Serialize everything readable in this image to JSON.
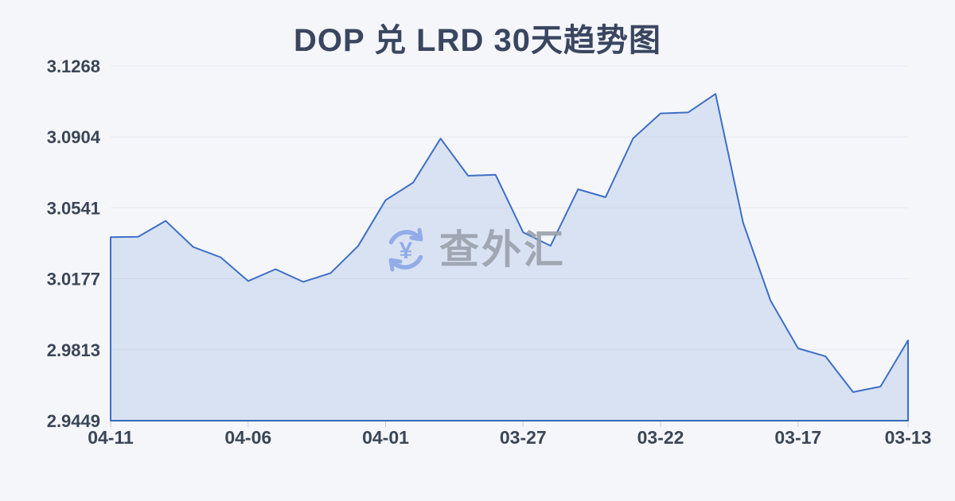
{
  "page": {
    "background": "#f5f6fa"
  },
  "chart_data": {
    "type": "area",
    "title": "DOP 兑 LRD 30天趋势图",
    "x": [
      "04-11",
      "04-10",
      "04-09",
      "04-08",
      "04-07",
      "04-06",
      "04-05",
      "04-04",
      "04-03",
      "04-02",
      "04-01",
      "03-31",
      "03-30",
      "03-29",
      "03-28",
      "03-27",
      "03-26",
      "03-25",
      "03-24",
      "03-23",
      "03-22",
      "03-21",
      "03-20",
      "03-19",
      "03-18",
      "03-17",
      "03-16",
      "03-15",
      "03-14",
      "03-13"
    ],
    "values": [
      3.039,
      3.0392,
      3.0474,
      3.034,
      3.0287,
      3.0165,
      3.0226,
      3.0161,
      3.0206,
      3.0345,
      3.058,
      3.067,
      3.0896,
      3.0705,
      3.071,
      3.0415,
      3.0346,
      3.0636,
      3.0595,
      3.0897,
      3.1025,
      3.103,
      3.1125,
      3.0465,
      3.0065,
      2.982,
      2.9779,
      2.9596,
      2.9624,
      2.9861
    ],
    "x_tick_labels": [
      "04-11",
      "04-06",
      "04-01",
      "03-27",
      "03-22",
      "03-17",
      "03-13"
    ],
    "y_tick_labels": [
      "3.1268",
      "3.0904",
      "3.0541",
      "3.0177",
      "2.9813",
      "2.9449"
    ],
    "ylim": [
      2.9449,
      3.1268
    ],
    "xlabel": "",
    "ylabel": "",
    "grid": true,
    "legend_position": "none",
    "colors": {
      "line": "#3d6fc6",
      "area_fill": "rgba(62,114,200,0.15)",
      "axis_line": "#3766b5",
      "grid_line": "#e6e9f0",
      "tick_mark": "#c9ccd3",
      "label_text": "#3a4656",
      "title_text": "#3a4660",
      "watermark_text": "#9aa1ac",
      "watermark_icon": "#8aa7e8"
    }
  },
  "watermark": {
    "text": "查外汇",
    "icon": "yen-exchange-icon"
  }
}
